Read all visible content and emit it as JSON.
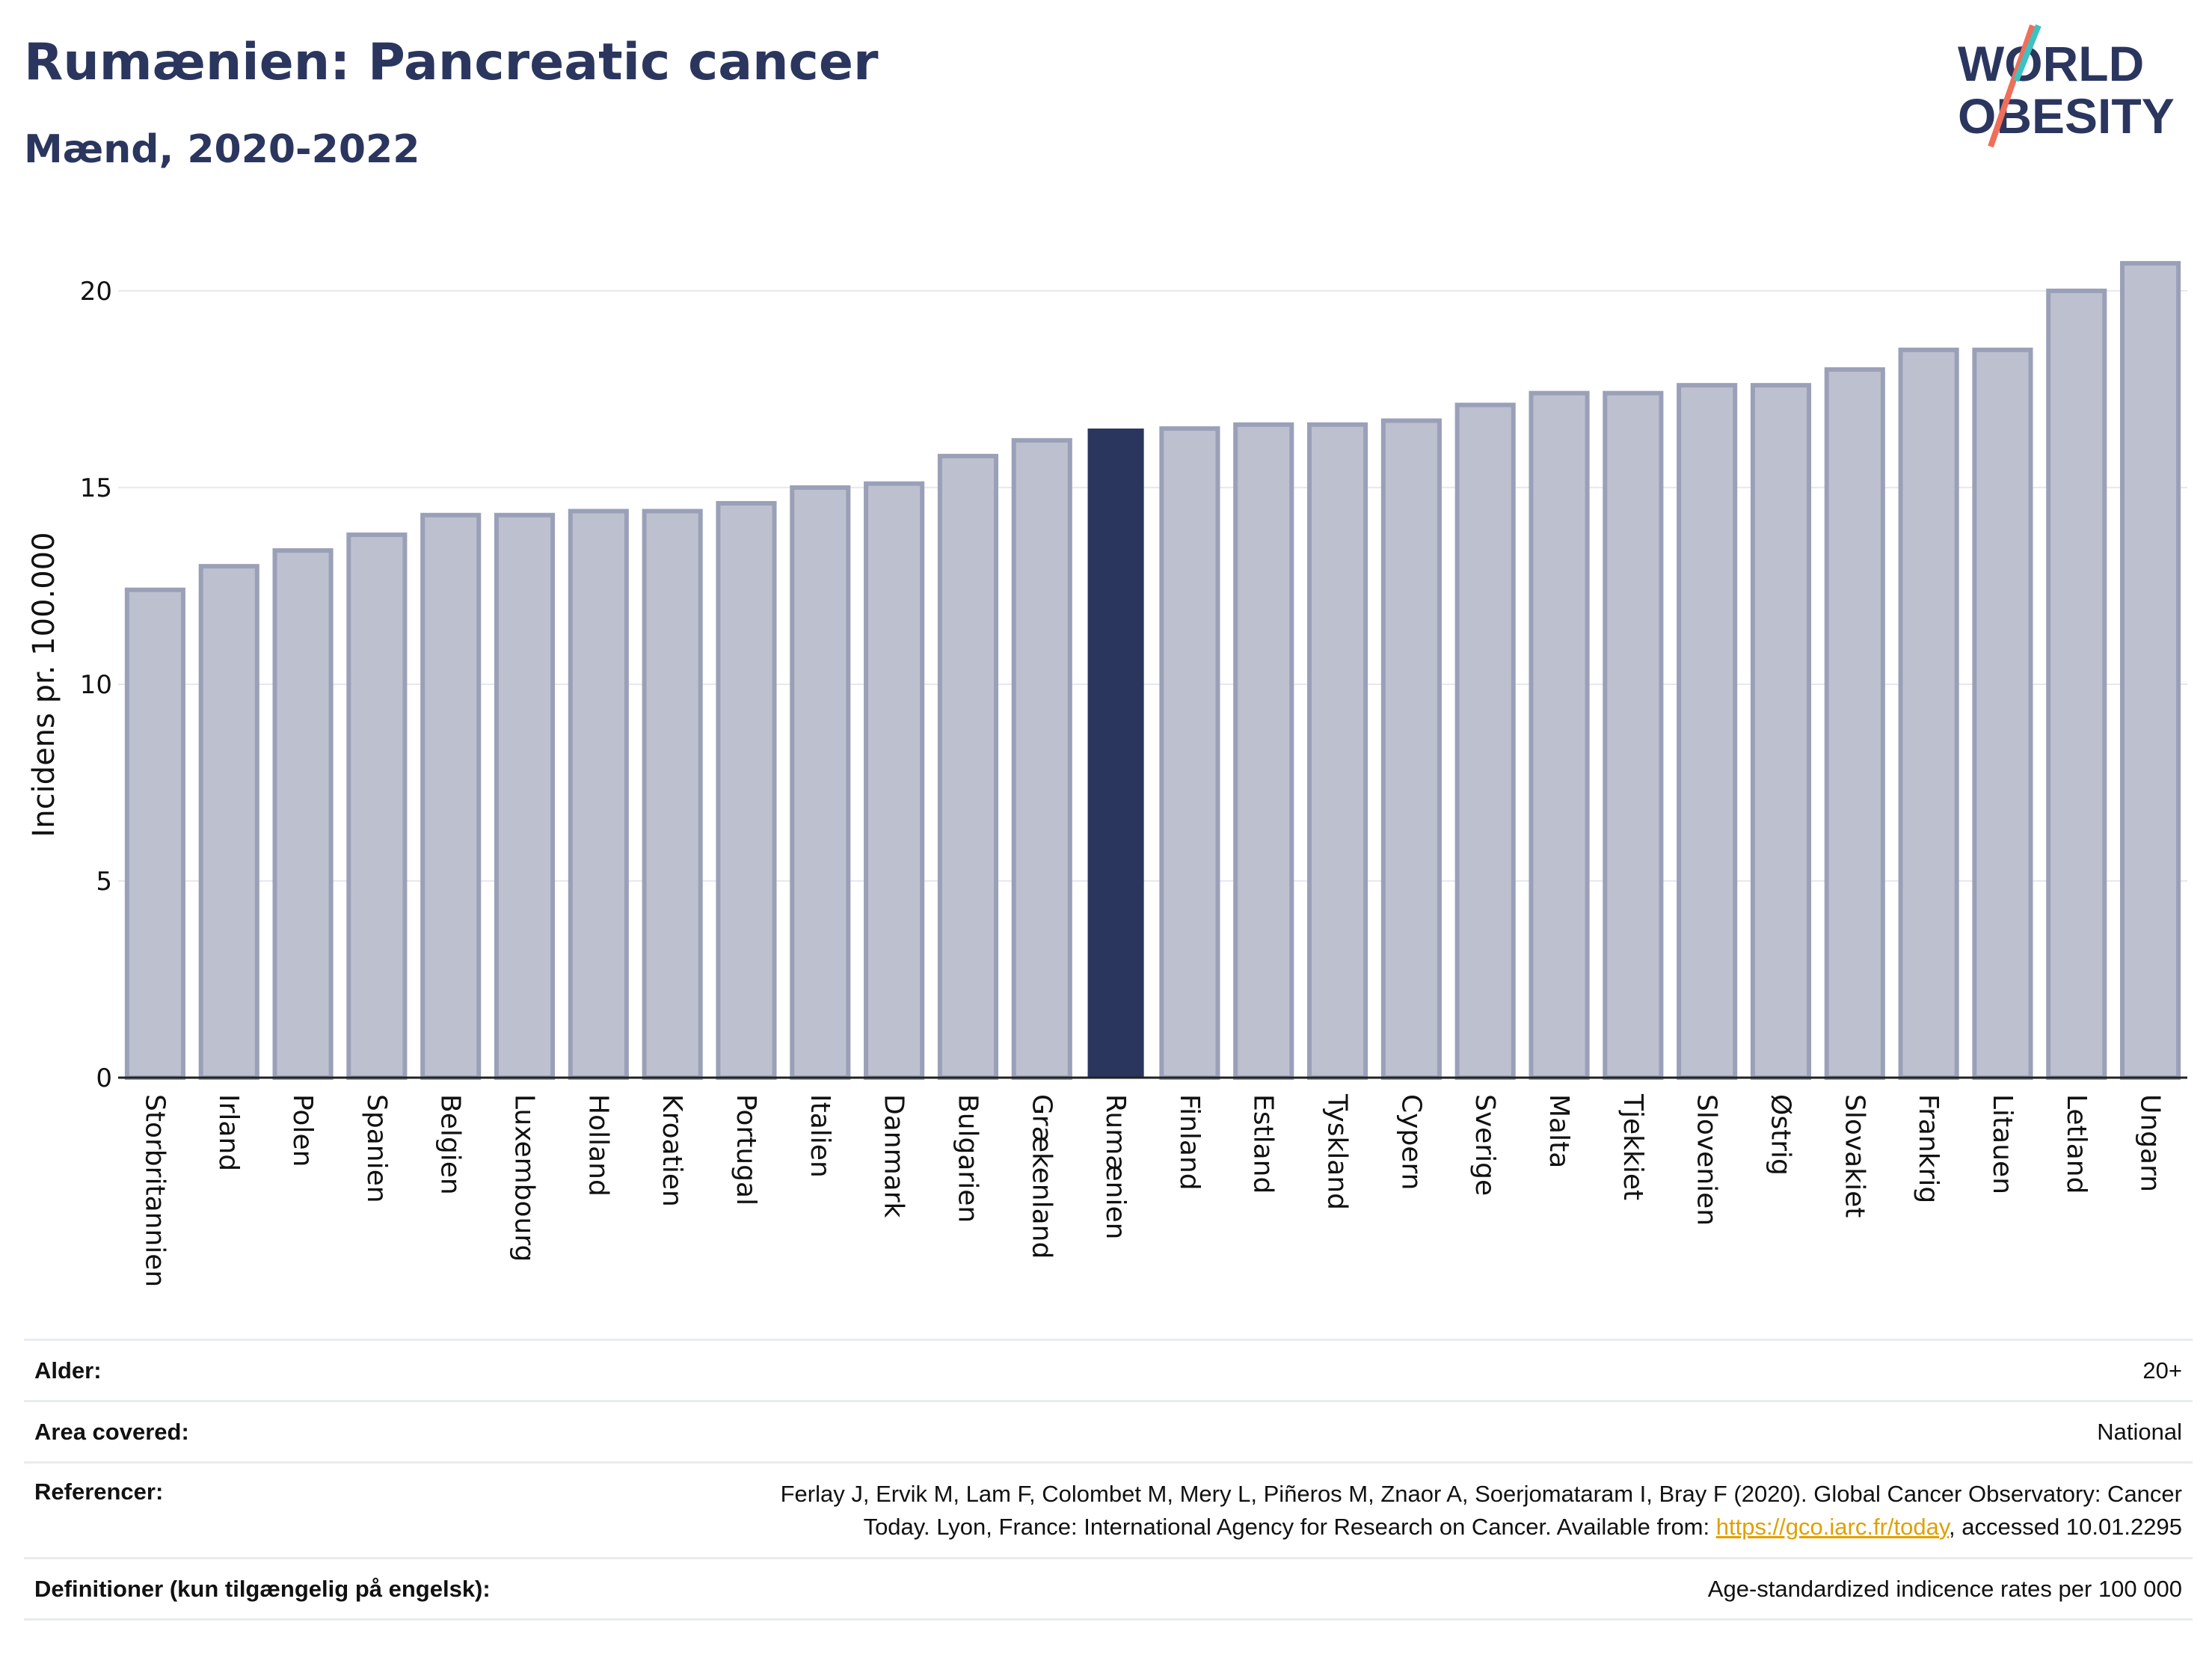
{
  "title": "Rumænien: Pancreatic cancer",
  "subtitle": "Mænd, 2020-2022",
  "logo": {
    "line1": "WORLD",
    "line2": "OBESITY"
  },
  "colors": {
    "highlight": "#2b365f",
    "bar": "#bdc1cf",
    "bar_stroke": "#9aa0b8",
    "title": "#2b365f",
    "link": "#e0a000"
  },
  "chart_data": {
    "type": "bar",
    "ylabel": "Incidens pr. 100.000",
    "xlabel": "",
    "ylim": [
      0,
      21.5
    ],
    "yticks": [
      0,
      5,
      10,
      15,
      20
    ],
    "grid": true,
    "highlight": "Rumænien",
    "categories": [
      "Storbritannien",
      "Irland",
      "Polen",
      "Spanien",
      "Belgien",
      "Luxembourg",
      "Holland",
      "Kroatien",
      "Portugal",
      "Italien",
      "Danmark",
      "Bulgarien",
      "Grækenland",
      "Rumænien",
      "Finland",
      "Estland",
      "Tyskland",
      "Cypern",
      "Sverige",
      "Malta",
      "Tjekkiet",
      "Slovenien",
      "Østrig",
      "Slovakiet",
      "Frankrig",
      "Litauen",
      "Letland",
      "Ungarn"
    ],
    "values": [
      12.4,
      13.0,
      13.4,
      13.8,
      14.3,
      14.3,
      14.4,
      14.4,
      14.6,
      15.0,
      15.1,
      15.8,
      16.2,
      16.5,
      16.5,
      16.6,
      16.6,
      16.7,
      17.1,
      17.4,
      17.4,
      17.6,
      17.6,
      18.0,
      18.5,
      18.5,
      20.0,
      20.7
    ]
  },
  "meta": [
    {
      "label": "Alder:",
      "value": "20+"
    },
    {
      "label": "Area covered:",
      "value": "National"
    },
    {
      "label": "Referencer:",
      "value_line1": "Ferlay J, Ervik M, Lam F, Colombet M, Mery L, Piñeros M, Znaor A, Soerjomataram I, Bray F (2020). Global Cancer Observatory: Cancer",
      "value_line2_pre": "Today. Lyon, France: International Agency for Research on Cancer. Available from: ",
      "link": "https://gco.iarc.fr/today",
      "value_line2_post": ", accessed 10.01.2295"
    },
    {
      "label": "Definitioner (kun tilgængelig på engelsk):",
      "value": "Age-standardized indicence rates per 100 000"
    }
  ]
}
